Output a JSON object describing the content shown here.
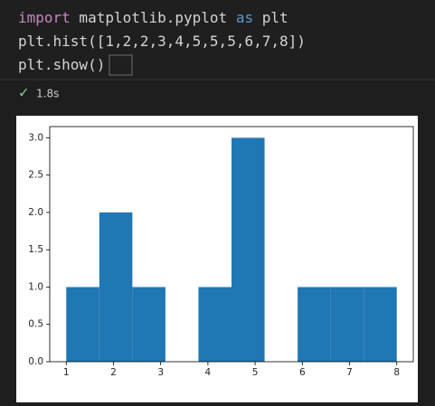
{
  "code": [
    [
      {
        "text": "import",
        "color": "#c586c0"
      },
      {
        "text": " matplotlib.pyplot ",
        "color": "#d4d4d4"
      },
      {
        "text": "as",
        "color": "#569cd6"
      },
      {
        "text": " plt",
        "color": "#d4d4d4"
      }
    ],
    [
      {
        "text": "plt.hist([1,2,2,3,4,5,5,5,6,7,8])",
        "color": "#d4d4d4"
      }
    ],
    [
      {
        "text": "plt.show()",
        "color": "#d4d4d4"
      }
    ]
  ],
  "status": {
    "icon": "✓",
    "time": "1.8s"
  },
  "chart_data": {
    "type": "histogram",
    "color": "#1f77b4",
    "bins": [
      1,
      1.7,
      2.4,
      3.1,
      3.8,
      4.5,
      5.2,
      5.9,
      6.6,
      7.3,
      8
    ],
    "values": [
      1,
      2,
      1,
      0,
      1,
      3,
      0,
      1,
      1,
      1
    ],
    "xlim": [
      0.65,
      8.35
    ],
    "xticks": [
      1,
      2,
      3,
      4,
      5,
      6,
      7,
      8
    ],
    "ylim": [
      0,
      3.15
    ],
    "yticks": [
      {
        "value": 0,
        "label": "0.0"
      },
      0.5,
      {
        "value": 1,
        "label": "1.0"
      },
      1.5,
      {
        "value": 2,
        "label": "2.0"
      },
      2.5,
      {
        "value": 3,
        "label": "3.0"
      }
    ]
  }
}
